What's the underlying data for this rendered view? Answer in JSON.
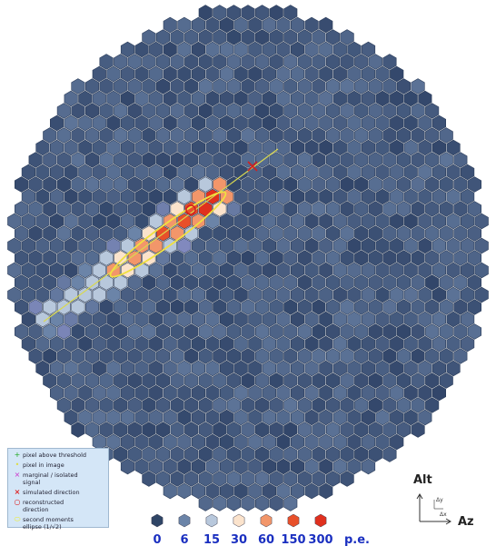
{
  "legend": {
    "items": [
      "pixel above threshold",
      "pixel in image",
      "marginal / isolated signal",
      "simulated direction",
      "reconstructed direction",
      "second moments ellipse (1/√2)"
    ]
  },
  "color_scale": {
    "levels": [
      {
        "value": 0,
        "color": "#2f4566"
      },
      {
        "value": 6,
        "color": "#6b84a8"
      },
      {
        "value": 15,
        "color": "#b8c8dc"
      },
      {
        "value": 30,
        "color": "#fbe3cc"
      },
      {
        "value": 60,
        "color": "#f2966a"
      },
      {
        "value": 150,
        "color": "#e8502a"
      },
      {
        "value": 300,
        "color": "#e0301e"
      }
    ],
    "unit": "p.e."
  },
  "axes": {
    "alt": "Alt",
    "az": "Az",
    "dx": "Δx",
    "dy": "Δy"
  }
}
